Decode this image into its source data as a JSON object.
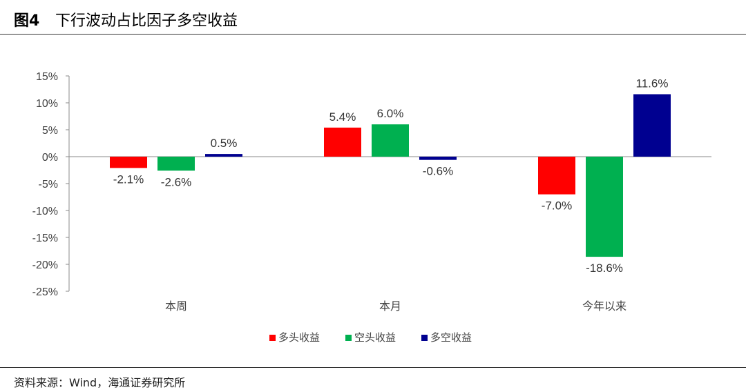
{
  "figure": {
    "number": "图4",
    "title": "下行波动占比因子多空收益",
    "source": "资料来源：Wind，海通证券研究所"
  },
  "chart_data": {
    "type": "bar",
    "categories": [
      "本周",
      "本月",
      "今年以来"
    ],
    "series": [
      {
        "name": "多头收益",
        "color": "#FF0000",
        "values": [
          -2.1,
          5.4,
          -7.0
        ]
      },
      {
        "name": "空头收益",
        "color": "#00B050",
        "values": [
          -2.6,
          6.0,
          -18.6
        ]
      },
      {
        "name": "多空收益",
        "color": "#000090",
        "values": [
          0.5,
          -0.6,
          11.6
        ]
      }
    ],
    "unit": "%",
    "ylim": [
      -25,
      15
    ],
    "yticks": [
      15,
      10,
      5,
      0,
      -5,
      -10,
      -15,
      -20,
      -25
    ],
    "ytick_labels": [
      "15%",
      "10%",
      "5%",
      "0%",
      "-5%",
      "-10%",
      "-15%",
      "-20%",
      "-25%"
    ],
    "data_labels": [
      [
        "-2.1%",
        "5.4%",
        "-7.0%"
      ],
      [
        "-2.6%",
        "6.0%",
        "-18.6%"
      ],
      [
        "0.5%",
        "-0.6%",
        "11.6%"
      ]
    ],
    "legend_position": "bottom-center",
    "grid": false
  }
}
